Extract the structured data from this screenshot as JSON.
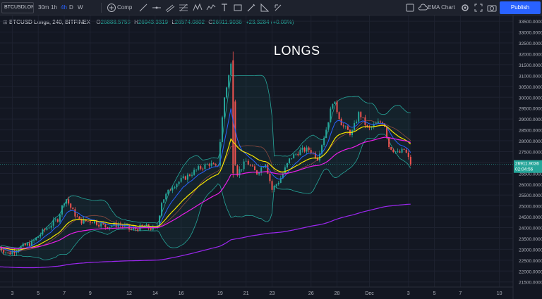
{
  "toolbar": {
    "symbol": "BTCUSDLON",
    "intervals": [
      {
        "label": "30m",
        "active": false
      },
      {
        "label": "1h",
        "active": false
      },
      {
        "label": "4h",
        "active": true
      },
      {
        "label": "D",
        "active": false
      },
      {
        "label": "W",
        "active": false
      }
    ],
    "compare_label": "Comp",
    "ema_label": "EMA Chart",
    "publish_label": "Publish",
    "drawing_tools": [
      "trend-line-icon",
      "horizontal-line-icon",
      "parallel-channel-icon",
      "fib-retracement-icon",
      "pattern-icon",
      "prediction-icon",
      "text-icon",
      "rectangle-icon",
      "brush-icon",
      "measure-icon",
      "zoom-icon"
    ],
    "right_icons": [
      "layout-icon",
      "settings-icon",
      "fullscreen-icon",
      "camera-icon"
    ]
  },
  "legend": {
    "symbol": "BTCUSD Longs, 240, BITFINEX",
    "o_label": "O",
    "o": "26888.5753",
    "h_label": "H",
    "h": "26943.3319",
    "l_label": "L",
    "l": "26574.0802",
    "c_label": "C",
    "c": "26911.9036",
    "change": "+23.3284 (+0.09%)"
  },
  "watermark": "LONGS",
  "price_tag": {
    "value": "26911.9036",
    "countdown": "02:04:56"
  },
  "colors": {
    "background": "#131722",
    "up": "#26a69a",
    "down": "#ef5350",
    "bb": "#26a69a",
    "ema_yellow": "#f7e600",
    "ema_orange": "#ff9800",
    "ema_magenta": "#e91ee9",
    "ema_purple": "#9c27f0",
    "ema_blue": "#2962ff",
    "accent": "#2962ff"
  },
  "chart_data": {
    "type": "candlestick",
    "title": "LONGS",
    "symbol": "BTCUSD Longs",
    "timeframe": "240",
    "exchange": "BITFINEX",
    "y_ticks": [
      "33500.0000",
      "33000.0000",
      "32500.0000",
      "32000.0000",
      "31500.0000",
      "31000.0000",
      "30500.0000",
      "30000.0000",
      "29500.0000",
      "29000.0000",
      "28500.0000",
      "28000.0000",
      "27500.0000",
      "27000.0000",
      "26500.0000",
      "26000.0000",
      "25500.0000",
      "25000.0000",
      "24500.0000",
      "24000.0000",
      "23500.0000",
      "23000.0000",
      "22500.0000",
      "22000.0000",
      "21500.0000"
    ],
    "ylim": [
      21200,
      33700
    ],
    "x_ticks": [
      {
        "label": "3",
        "day": 3
      },
      {
        "label": "5",
        "day": 5
      },
      {
        "label": "7",
        "day": 7
      },
      {
        "label": "9",
        "day": 9
      },
      {
        "label": "12",
        "day": 12
      },
      {
        "label": "14",
        "day": 14
      },
      {
        "label": "16",
        "day": 16
      },
      {
        "label": "19",
        "day": 19
      },
      {
        "label": "21",
        "day": 21
      },
      {
        "label": "23",
        "day": 23
      },
      {
        "label": "26",
        "day": 26
      },
      {
        "label": "28",
        "day": 28
      },
      {
        "label": "Dec",
        "day": 30.5
      },
      {
        "label": "3",
        "day": 33.5
      },
      {
        "label": "5",
        "day": 35.5
      },
      {
        "label": "7",
        "day": 37.5
      },
      {
        "label": "10",
        "day": 40.5
      }
    ],
    "xlim": [
      2,
      41.5
    ],
    "candle_days": [
      2,
      33.7
    ],
    "path_keypoints": [
      [
        2,
        23100
      ],
      [
        2.7,
        22800
      ],
      [
        3.5,
        23050
      ],
      [
        4.5,
        23300
      ],
      [
        5.5,
        23900
      ],
      [
        6.5,
        24400
      ],
      [
        7.1,
        25400
      ],
      [
        7.6,
        24800
      ],
      [
        8.2,
        24300
      ],
      [
        9.2,
        24300
      ],
      [
        10.2,
        24050
      ],
      [
        11.2,
        24150
      ],
      [
        12.2,
        23900
      ],
      [
        13.2,
        24050
      ],
      [
        14.1,
        23900
      ],
      [
        14.5,
        25200
      ],
      [
        15.3,
        25900
      ],
      [
        16.3,
        26300
      ],
      [
        17.3,
        26700
      ],
      [
        18.2,
        26950
      ],
      [
        18.8,
        26700
      ],
      [
        19.3,
        29900
      ],
      [
        19.9,
        31700
      ],
      [
        20.2,
        26400
      ],
      [
        21.0,
        27050
      ],
      [
        21.8,
        26500
      ],
      [
        22.5,
        27000
      ],
      [
        23.0,
        25750
      ],
      [
        23.6,
        26200
      ],
      [
        24.4,
        27200
      ],
      [
        25.2,
        27550
      ],
      [
        25.9,
        27600
      ],
      [
        26.5,
        27200
      ],
      [
        27.2,
        28600
      ],
      [
        27.7,
        29900
      ],
      [
        28.4,
        28700
      ],
      [
        29.1,
        28300
      ],
      [
        29.7,
        29300
      ],
      [
        30.4,
        28500
      ],
      [
        31.1,
        28800
      ],
      [
        31.6,
        28900
      ],
      [
        32.0,
        27750
      ],
      [
        32.7,
        27400
      ],
      [
        33.2,
        27600
      ],
      [
        33.7,
        26900
      ]
    ],
    "indicators": [
      {
        "kind": "bollinger",
        "color": "#26a69a"
      },
      {
        "kind": "ema",
        "color": "#f7e600"
      },
      {
        "kind": "ema",
        "color": "#e91ee9"
      },
      {
        "kind": "ema",
        "color": "#9c27f0"
      },
      {
        "kind": "ema",
        "color": "#2962ff"
      }
    ]
  }
}
